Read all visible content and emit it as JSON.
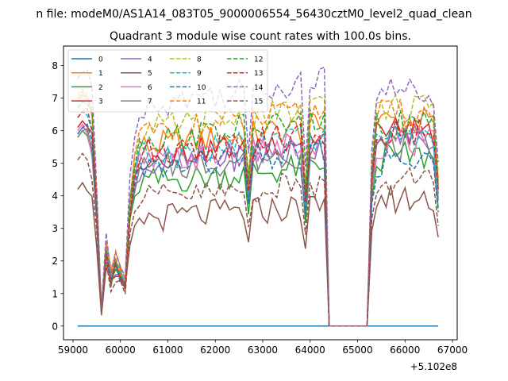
{
  "figure": {
    "suptitle": "n file: modeM0/AS1A14_083T05_9000006554_56430cztM0_level2_quad_clean"
  },
  "chart_data": {
    "type": "line",
    "title": "Quadrant 3 module wise count rates with 100.0s bins.",
    "xlabel": "",
    "ylabel": "",
    "x_offset_label": "+5.102e8",
    "xlim": [
      58800,
      67100
    ],
    "ylim": [
      -0.42,
      8.6
    ],
    "xticks": [
      59000,
      60000,
      61000,
      62000,
      63000,
      64000,
      65000,
      66000,
      67000
    ],
    "xtick_labels": [
      "59000",
      "60000",
      "61000",
      "62000",
      "63000",
      "64000",
      "65000",
      "66000",
      "67000"
    ],
    "yticks": [
      0,
      1,
      2,
      3,
      4,
      5,
      6,
      7,
      8
    ],
    "ytick_labels": [
      "0",
      "1",
      "2",
      "3",
      "4",
      "5",
      "6",
      "7",
      "8"
    ],
    "legend": {
      "placement": "upper-left",
      "columns": 4
    },
    "segment1_x": [
      59100,
      59200,
      59300,
      59400,
      59500,
      59600,
      59700,
      59800,
      59900,
      60000,
      60100,
      60200,
      60300,
      60400,
      60500,
      60600,
      60700,
      60800,
      60900,
      61000,
      61100,
      61200,
      61300,
      61400,
      61500,
      61600,
      61700,
      61800,
      61900,
      62000,
      62100,
      62200,
      62300,
      62400,
      62500,
      62600,
      62700,
      62800,
      62900,
      63000,
      63100,
      63200,
      63300,
      63400,
      63500,
      63600,
      63700,
      63800,
      63900,
      64000,
      64100,
      64200,
      64300,
      64400
    ],
    "gap": {
      "x": [
        64400,
        65200
      ],
      "y": 0
    },
    "segment2_x": [
      65200,
      65300,
      65400,
      65500,
      65600,
      65700,
      65800,
      65900,
      66000,
      66100,
      66200,
      66300,
      66400,
      66500,
      66600,
      66700
    ],
    "series": [
      {
        "name": "0",
        "color": "#1f77b4",
        "dash": "solid",
        "constant": 0
      },
      {
        "name": "1",
        "color": "#ff7f0e",
        "dash": "solid",
        "base": 5.5,
        "first": 7.1,
        "seg2_level": 6.3
      },
      {
        "name": "2",
        "color": "#2ca02c",
        "dash": "solid",
        "base": 4.4,
        "first": 6.0,
        "seg2_level": 5.2
      },
      {
        "name": "3",
        "color": "#d62728",
        "dash": "solid",
        "base": 5.2,
        "first": 6.3,
        "seg2_level": 6.0
      },
      {
        "name": "4",
        "color": "#9467bd",
        "dash": "solid",
        "base": 4.9,
        "first": 6.1,
        "seg2_level": 5.8
      },
      {
        "name": "5",
        "color": "#8c564b",
        "dash": "solid",
        "base": 3.3,
        "first": 4.4,
        "seg2_level": 3.9
      },
      {
        "name": "6",
        "color": "#e377c2",
        "dash": "solid",
        "base": 5.0,
        "first": 6.2,
        "seg2_level": 5.6
      },
      {
        "name": "7",
        "color": "#7f7f7f",
        "dash": "solid",
        "base": 4.8,
        "first": 6.0,
        "seg2_level": 5.5
      },
      {
        "name": "8",
        "color": "#bcbd22",
        "dash": "dashed",
        "base": 6.0,
        "first": 7.3,
        "seg2_level": 6.7
      },
      {
        "name": "9",
        "color": "#17becf",
        "dash": "dashed",
        "base": 5.2,
        "first": 6.6,
        "seg2_level": 5.8
      },
      {
        "name": "10",
        "color": "#1f77b4",
        "dash": "dashed",
        "base": 4.8,
        "first": 6.1,
        "seg2_level": 5.0
      },
      {
        "name": "11",
        "color": "#ff7f0e",
        "dash": "dashed",
        "base": 5.9,
        "first": 7.2,
        "seg2_level": 6.5
      },
      {
        "name": "12",
        "color": "#2ca02c",
        "dash": "dashed",
        "base": 5.7,
        "first": 6.9,
        "seg2_level": 6.2
      },
      {
        "name": "13",
        "color": "#d62728",
        "dash": "dashed",
        "base": 5.3,
        "first": 6.6,
        "seg2_level": 6.0
      },
      {
        "name": "14",
        "color": "#9467bd",
        "dash": "dashed",
        "base": 6.8,
        "first": 7.8,
        "seg2_level": 7.2
      },
      {
        "name": "15",
        "color": "#8c564b",
        "dash": "dashed",
        "base": 3.9,
        "first": 5.3,
        "seg2_level": 4.4
      }
    ]
  }
}
